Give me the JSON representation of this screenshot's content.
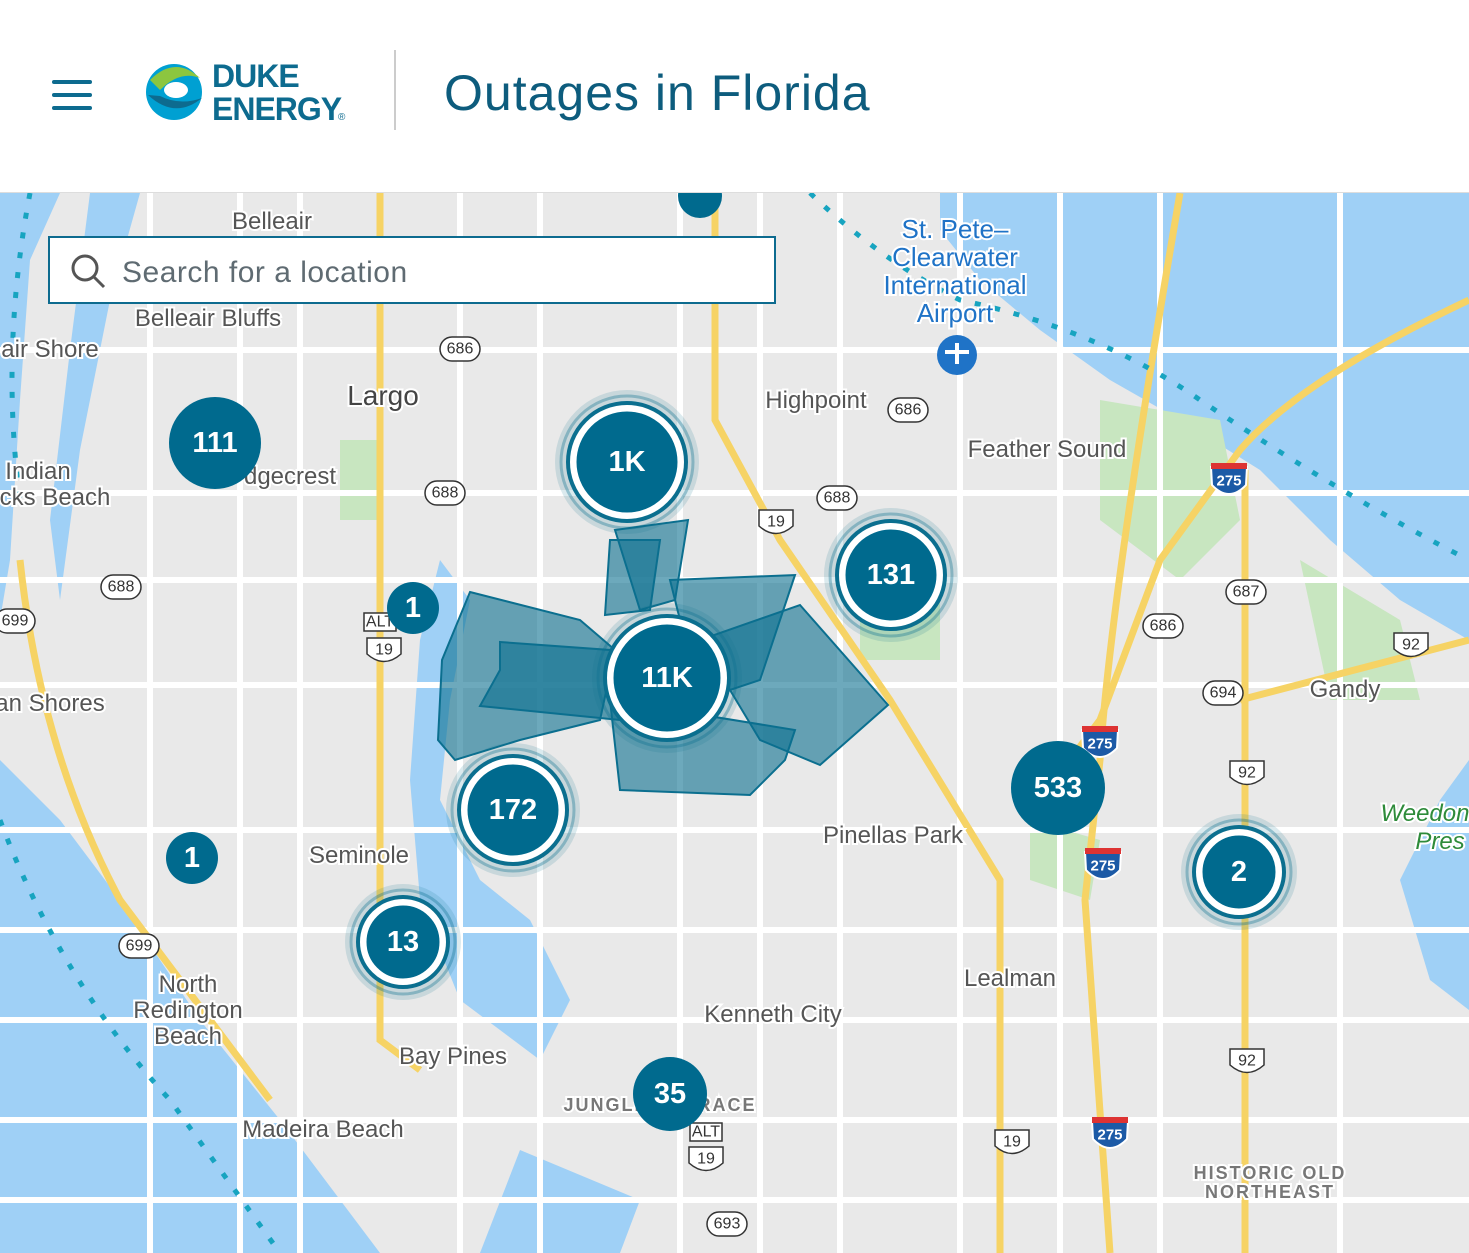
{
  "header": {
    "logo": {
      "line1": "DUKE",
      "line2": "ENERGY",
      "mark": "®"
    },
    "title": "Outages in Florida"
  },
  "search": {
    "placeholder": "Search for a location"
  },
  "map": {
    "places": [
      "Belleair",
      "Belleair Bluffs",
      "air Shore",
      "Largo",
      "Indian",
      "cks Beach",
      "dgecrest",
      "an Shores",
      "Seminole",
      "North",
      "Redington",
      "Beach",
      "Bay Pines",
      "Madeira Beach",
      "JUNGLE TERRACE",
      "Kenneth City",
      "Pinellas Park",
      "Lealman",
      "Highpoint",
      "Feather Sound",
      "St. Pete–",
      "Clearwater",
      "International",
      "Airport",
      "Gandy",
      "Weedon",
      "Pres",
      "HISTORIC OLD",
      "NORTHEAST"
    ],
    "clusters": [
      "1K",
      "11K",
      "111",
      "1",
      "131",
      "172",
      "1",
      "13",
      "533",
      "2",
      "35"
    ],
    "shields": [
      "686",
      "686",
      "688",
      "688",
      "688",
      "19",
      "ALT",
      "19",
      "699",
      "699",
      "275",
      "687",
      "686",
      "92",
      "694",
      "275",
      "92",
      "275",
      "92",
      "275",
      "19",
      "ALT",
      "19",
      "693"
    ]
  }
}
